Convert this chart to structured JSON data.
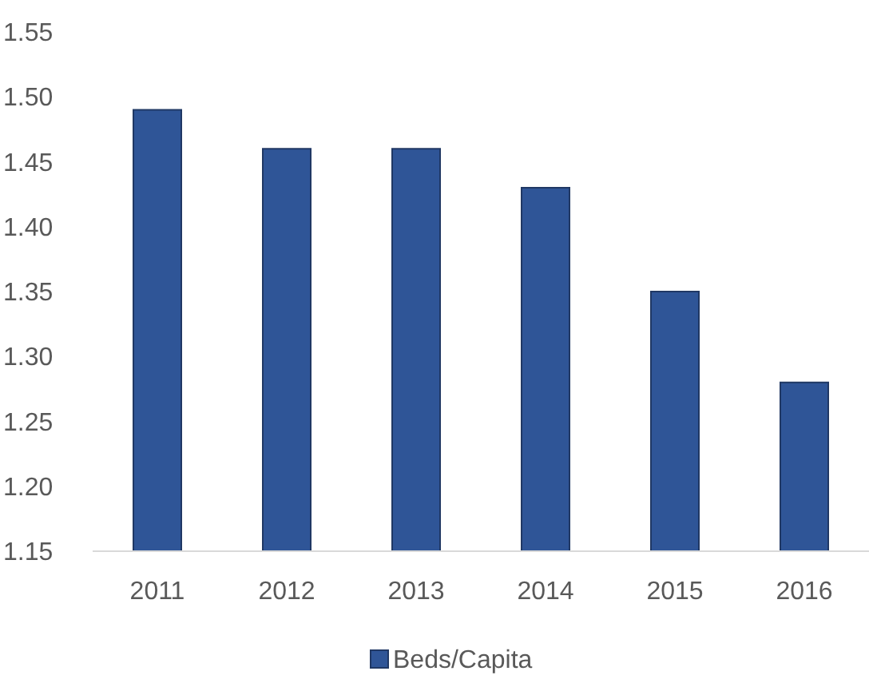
{
  "chart_data": {
    "type": "bar",
    "categories": [
      "2011",
      "2012",
      "2013",
      "2014",
      "2015",
      "2016"
    ],
    "series": [
      {
        "name": "Beds/Capita",
        "color": "#2f5597",
        "values": [
          1.49,
          1.46,
          1.46,
          1.43,
          1.35,
          1.28
        ]
      }
    ],
    "ylim": [
      1.15,
      1.55
    ],
    "yticks": [
      {
        "value": 1.15,
        "label": "1.15"
      },
      {
        "value": 1.2,
        "label": "1.20"
      },
      {
        "value": 1.25,
        "label": "1.25"
      },
      {
        "value": 1.3,
        "label": "1.30"
      },
      {
        "value": 1.35,
        "label": "1.35"
      },
      {
        "value": 1.4,
        "label": "1.40"
      },
      {
        "value": 1.45,
        "label": "1.45"
      },
      {
        "value": 1.5,
        "label": "1.50"
      },
      {
        "value": 1.55,
        "label": "1.55"
      }
    ],
    "grid": false,
    "legend": "bottom"
  }
}
